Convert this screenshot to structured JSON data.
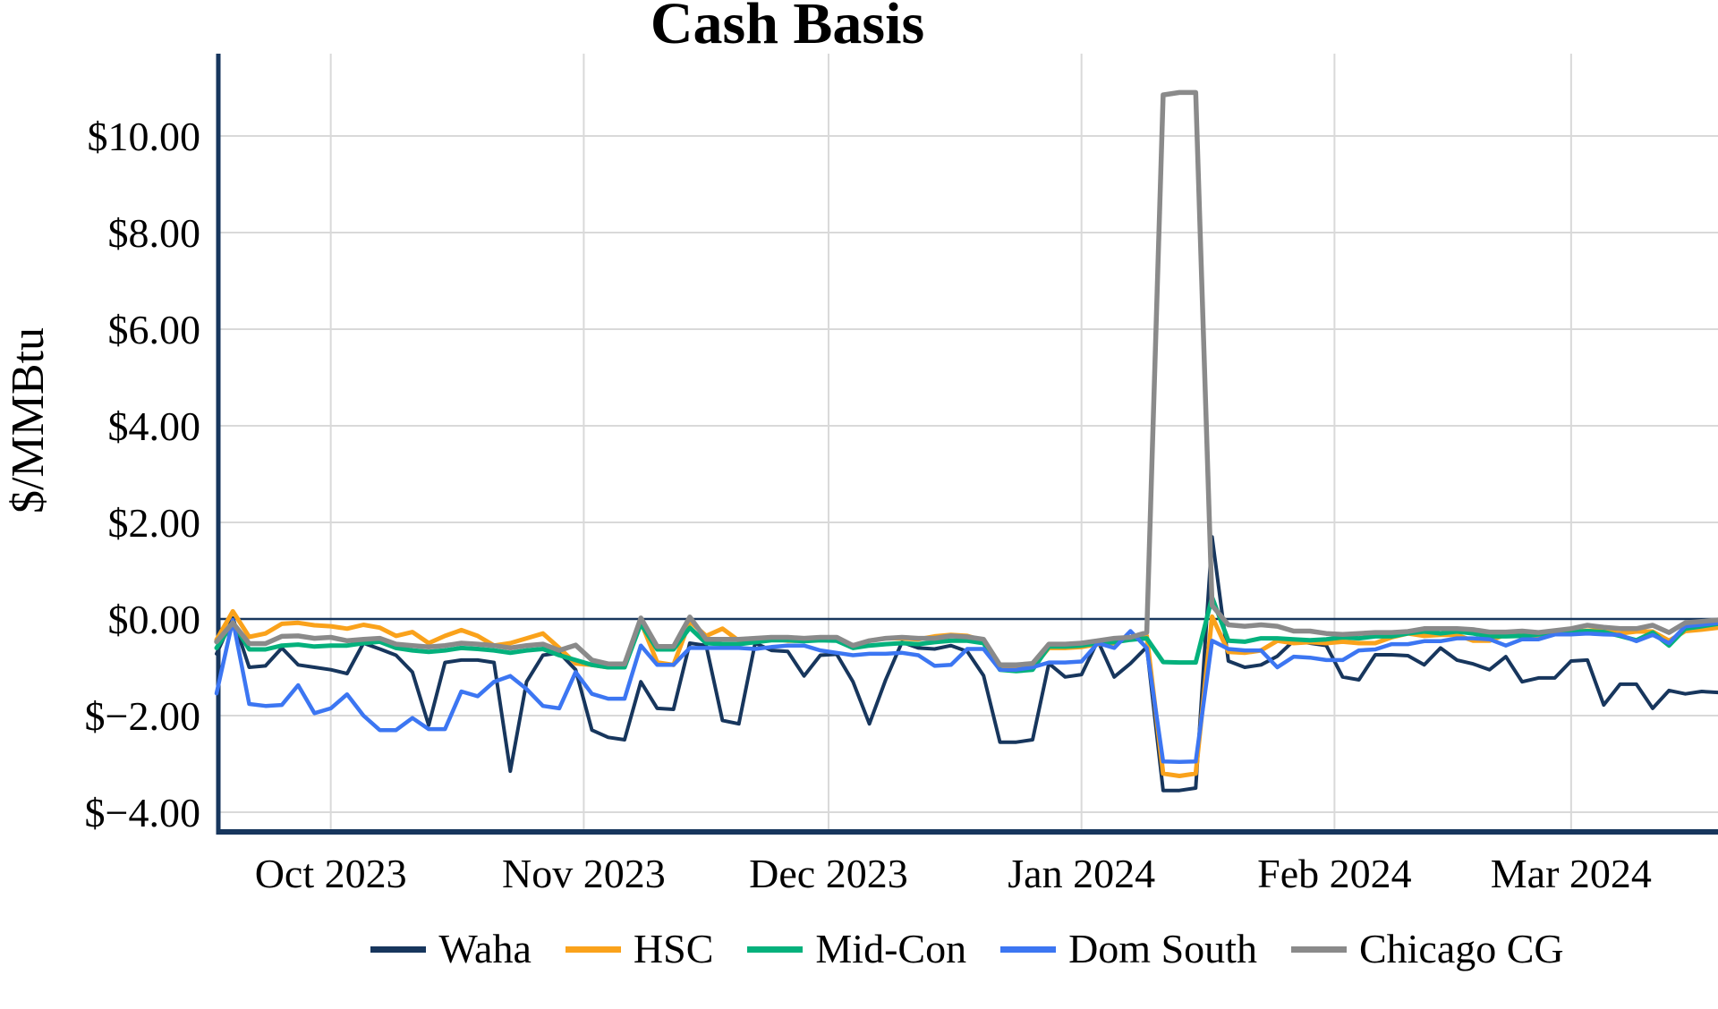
{
  "page": {
    "background": "#ffffff",
    "text_color": "#000000",
    "gridline_color": "#d9d9d9",
    "axis_color": "#17365d"
  },
  "chart": {
    "title": "Cash Basis",
    "y_axis_title": "$/MMBtu"
  },
  "chart_data": {
    "type": "line",
    "title": "Cash Basis",
    "xlabel": "",
    "ylabel": "$/MMBtu",
    "grid": true,
    "legend_position": "bottom",
    "x_start_date": "2023-09-17",
    "x_step_days": 2,
    "x_span_days": 184,
    "ylim": [
      -4.4,
      11.7
    ],
    "y_ticks": [
      {
        "label": "$10.00",
        "value": 10
      },
      {
        "label": "$8.00",
        "value": 8
      },
      {
        "label": "$6.00",
        "value": 6
      },
      {
        "label": "$4.00",
        "value": 4
      },
      {
        "label": "$2.00",
        "value": 2
      },
      {
        "label": "$0.00",
        "value": 0
      },
      {
        "label": "$−2.00",
        "value": -2
      },
      {
        "label": "$−4.00",
        "value": -4
      }
    ],
    "x_ticks": [
      {
        "label": "Oct 2023",
        "day": 14
      },
      {
        "label": "Nov 2023",
        "day": 45
      },
      {
        "label": "Dec 2023",
        "day": 75
      },
      {
        "label": "Jan 2024",
        "day": 106
      },
      {
        "label": "Feb 2024",
        "day": 137
      },
      {
        "label": "Mar 2024",
        "day": 166
      }
    ],
    "series": [
      {
        "name": "Waha",
        "color": "#17365d",
        "stroke_width": 4,
        "values": [
          -0.72,
          0.02,
          -1.0,
          -0.97,
          -0.6,
          -0.95,
          -1.0,
          -1.05,
          -1.13,
          -0.5,
          -0.62,
          -0.75,
          -1.1,
          -2.2,
          -0.9,
          -0.85,
          -0.85,
          -0.9,
          -3.15,
          -1.3,
          -0.75,
          -0.7,
          -1.05,
          -2.3,
          -2.45,
          -2.5,
          -1.3,
          -1.85,
          -1.87,
          -0.5,
          -0.55,
          -2.1,
          -2.17,
          -0.5,
          -0.65,
          -0.67,
          -1.18,
          -0.75,
          -0.73,
          -1.3,
          -2.17,
          -1.26,
          -0.48,
          -0.6,
          -0.62,
          -0.55,
          -0.67,
          -1.17,
          -2.55,
          -2.55,
          -2.5,
          -0.92,
          -1.2,
          -1.15,
          -0.45,
          -1.2,
          -0.92,
          -0.58,
          -3.55,
          -3.55,
          -3.5,
          1.7,
          -0.87,
          -1.0,
          -0.95,
          -0.77,
          -0.45,
          -0.5,
          -0.55,
          -1.2,
          -1.26,
          -0.74,
          -0.74,
          -0.76,
          -0.95,
          -0.6,
          -0.85,
          -0.93,
          -1.05,
          -0.78,
          -1.3,
          -1.22,
          -1.22,
          -0.87,
          -0.85,
          -1.78,
          -1.35,
          -1.35,
          -1.85,
          -1.48,
          -1.55,
          -1.5,
          -1.52
        ]
      },
      {
        "name": "HSC",
        "color": "#faa21b",
        "stroke_width": 5,
        "values": [
          -0.43,
          0.16,
          -0.37,
          -0.3,
          -0.1,
          -0.08,
          -0.13,
          -0.15,
          -0.2,
          -0.12,
          -0.18,
          -0.35,
          -0.27,
          -0.5,
          -0.35,
          -0.23,
          -0.35,
          -0.55,
          -0.5,
          -0.4,
          -0.3,
          -0.6,
          -0.92,
          -0.95,
          -1.0,
          -0.95,
          -0.06,
          -0.9,
          -0.95,
          -0.05,
          -0.35,
          -0.2,
          -0.45,
          -0.45,
          -0.4,
          -0.45,
          -0.45,
          -0.4,
          -0.42,
          -0.55,
          -0.45,
          -0.4,
          -0.4,
          -0.42,
          -0.36,
          -0.33,
          -0.35,
          -0.45,
          -1.0,
          -1.03,
          -1.0,
          -0.6,
          -0.6,
          -0.58,
          -0.52,
          -0.5,
          -0.4,
          -0.35,
          -3.2,
          -3.25,
          -3.2,
          0.05,
          -0.68,
          -0.7,
          -0.65,
          -0.45,
          -0.5,
          -0.48,
          -0.5,
          -0.47,
          -0.5,
          -0.5,
          -0.38,
          -0.3,
          -0.35,
          -0.33,
          -0.33,
          -0.45,
          -0.45,
          -0.32,
          -0.3,
          -0.35,
          -0.28,
          -0.27,
          -0.24,
          -0.24,
          -0.3,
          -0.26,
          -0.26,
          -0.45,
          -0.25,
          -0.22,
          -0.18
        ]
      },
      {
        "name": "Mid-Con",
        "color": "#04b17c",
        "stroke_width": 5,
        "values": [
          -0.6,
          -0.08,
          -0.63,
          -0.63,
          -0.55,
          -0.53,
          -0.57,
          -0.55,
          -0.55,
          -0.5,
          -0.47,
          -0.6,
          -0.65,
          -0.68,
          -0.65,
          -0.6,
          -0.62,
          -0.65,
          -0.7,
          -0.65,
          -0.62,
          -0.75,
          -0.85,
          -0.95,
          -1.0,
          -1.0,
          -0.1,
          -0.63,
          -0.63,
          -0.18,
          -0.5,
          -0.52,
          -0.52,
          -0.48,
          -0.44,
          -0.44,
          -0.46,
          -0.44,
          -0.45,
          -0.6,
          -0.55,
          -0.52,
          -0.5,
          -0.52,
          -0.48,
          -0.45,
          -0.45,
          -0.5,
          -1.05,
          -1.08,
          -1.05,
          -0.57,
          -0.57,
          -0.55,
          -0.5,
          -0.48,
          -0.43,
          -0.4,
          -0.89,
          -0.9,
          -0.9,
          0.45,
          -0.45,
          -0.47,
          -0.4,
          -0.4,
          -0.42,
          -0.44,
          -0.42,
          -0.38,
          -0.4,
          -0.36,
          -0.36,
          -0.3,
          -0.26,
          -0.3,
          -0.26,
          -0.3,
          -0.36,
          -0.36,
          -0.35,
          -0.32,
          -0.28,
          -0.27,
          -0.25,
          -0.27,
          -0.35,
          -0.44,
          -0.28,
          -0.55,
          -0.2,
          -0.15,
          -0.1
        ]
      },
      {
        "name": "Dom South",
        "color": "#3c76f2",
        "stroke_width": 4.5,
        "values": [
          -1.54,
          -0.02,
          -1.76,
          -1.8,
          -1.78,
          -1.37,
          -1.95,
          -1.85,
          -1.56,
          -2.0,
          -2.3,
          -2.3,
          -2.05,
          -2.28,
          -2.28,
          -1.5,
          -1.6,
          -1.3,
          -1.18,
          -1.45,
          -1.8,
          -1.85,
          -1.1,
          -1.55,
          -1.65,
          -1.65,
          -0.55,
          -0.95,
          -0.95,
          -0.6,
          -0.6,
          -0.6,
          -0.6,
          -0.62,
          -0.58,
          -0.55,
          -0.55,
          -0.65,
          -0.7,
          -0.75,
          -0.72,
          -0.72,
          -0.7,
          -0.75,
          -0.97,
          -0.95,
          -0.62,
          -0.62,
          -1.05,
          -1.05,
          -1.0,
          -0.9,
          -0.9,
          -0.88,
          -0.5,
          -0.6,
          -0.25,
          -0.6,
          -2.95,
          -2.96,
          -2.95,
          -0.45,
          -0.62,
          -0.65,
          -0.65,
          -1.0,
          -0.78,
          -0.8,
          -0.85,
          -0.85,
          -0.65,
          -0.63,
          -0.52,
          -0.52,
          -0.46,
          -0.46,
          -0.4,
          -0.4,
          -0.42,
          -0.55,
          -0.42,
          -0.42,
          -0.32,
          -0.32,
          -0.3,
          -0.32,
          -0.33,
          -0.46,
          -0.33,
          -0.5,
          -0.15,
          -0.12,
          -0.08
        ]
      },
      {
        "name": "Chicago CG",
        "color": "#8a8a8a",
        "stroke_width": 5.5,
        "values": [
          -0.47,
          -0.08,
          -0.51,
          -0.51,
          -0.36,
          -0.35,
          -0.4,
          -0.38,
          -0.45,
          -0.42,
          -0.4,
          -0.52,
          -0.55,
          -0.58,
          -0.55,
          -0.5,
          -0.52,
          -0.55,
          -0.6,
          -0.55,
          -0.52,
          -0.65,
          -0.54,
          -0.85,
          -0.93,
          -0.93,
          0.02,
          -0.57,
          -0.57,
          0.04,
          -0.42,
          -0.42,
          -0.42,
          -0.4,
          -0.38,
          -0.38,
          -0.4,
          -0.38,
          -0.38,
          -0.55,
          -0.45,
          -0.4,
          -0.38,
          -0.4,
          -0.4,
          -0.35,
          -0.37,
          -0.42,
          -0.95,
          -0.95,
          -0.92,
          -0.52,
          -0.52,
          -0.5,
          -0.45,
          -0.4,
          -0.38,
          -0.28,
          10.85,
          10.9,
          10.9,
          0.28,
          -0.12,
          -0.15,
          -0.12,
          -0.15,
          -0.25,
          -0.25,
          -0.3,
          -0.32,
          -0.3,
          -0.28,
          -0.28,
          -0.26,
          -0.2,
          -0.2,
          -0.2,
          -0.22,
          -0.27,
          -0.27,
          -0.25,
          -0.28,
          -0.24,
          -0.2,
          -0.13,
          -0.17,
          -0.2,
          -0.2,
          -0.13,
          -0.28,
          -0.08,
          -0.05,
          -0.02
        ]
      }
    ]
  }
}
